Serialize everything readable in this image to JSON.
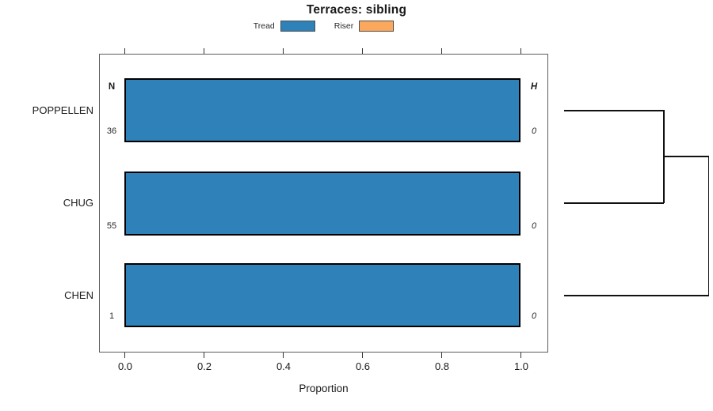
{
  "title": "Terraces: sibling",
  "legend": [
    {
      "label": "Tread",
      "color": "#2E81B9"
    },
    {
      "label": "Riser",
      "color": "#FBA85D"
    }
  ],
  "axis": {
    "xlabel": "Proportion",
    "x_ticks": [
      "0.0",
      "0.2",
      "0.4",
      "0.6",
      "0.8",
      "1.0"
    ]
  },
  "columns": {
    "left_header": "N",
    "right_header": "H"
  },
  "rows": [
    {
      "label": "POPPELLEN",
      "n": "36",
      "h": "0"
    },
    {
      "label": "CHUG",
      "n": "55",
      "h": "0"
    },
    {
      "label": "CHEN",
      "n": "1",
      "h": "0"
    }
  ],
  "chart_data": {
    "type": "bar",
    "orientation": "horizontal",
    "stacked": true,
    "title": "Terraces: sibling",
    "xlabel": "Proportion",
    "xlim": [
      0,
      1
    ],
    "x_ticks": [
      0.0,
      0.2,
      0.4,
      0.6,
      0.8,
      1.0
    ],
    "categories": [
      "POPPELLEN",
      "CHUG",
      "CHEN"
    ],
    "series": [
      {
        "name": "Tread",
        "color": "#2E81B9",
        "values": [
          1.0,
          1.0,
          1.0
        ]
      },
      {
        "name": "Riser",
        "color": "#FBA85D",
        "values": [
          0.0,
          0.0,
          0.0
        ]
      }
    ],
    "annotations": {
      "N": [
        36,
        55,
        1
      ],
      "H": [
        0,
        0,
        0
      ]
    },
    "legend_position": "top",
    "grid": false,
    "dendrogram": {
      "side": "right",
      "merges": [
        [
          "POPPELLEN",
          "CHUG"
        ],
        [
          "(POPPELLEN,CHUG)",
          "CHEN"
        ]
      ]
    }
  }
}
